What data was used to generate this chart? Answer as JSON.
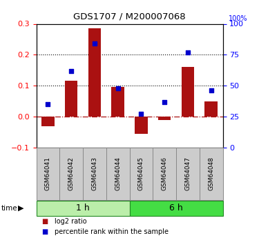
{
  "title": "GDS1707 / M200007068",
  "samples": [
    "GSM64041",
    "GSM64042",
    "GSM64043",
    "GSM64044",
    "GSM64045",
    "GSM64046",
    "GSM64047",
    "GSM64048"
  ],
  "log2_ratio": [
    -0.03,
    0.115,
    0.285,
    0.095,
    -0.055,
    -0.01,
    0.16,
    0.05
  ],
  "percentile_rank": [
    35,
    62,
    84,
    48,
    27,
    37,
    77,
    46
  ],
  "groups": [
    {
      "label": "1 h",
      "indices": [
        0,
        1,
        2,
        3
      ],
      "color": "#bbeeaa"
    },
    {
      "label": "6 h",
      "indices": [
        4,
        5,
        6,
        7
      ],
      "color": "#44dd44"
    }
  ],
  "bar_color": "#aa1111",
  "dot_color": "#0000cc",
  "ylim_left": [
    -0.1,
    0.3
  ],
  "ylim_right": [
    0,
    100
  ],
  "yticks_left": [
    -0.1,
    0.0,
    0.1,
    0.2,
    0.3
  ],
  "yticks_right": [
    0,
    25,
    50,
    75,
    100
  ],
  "dotted_lines": [
    0.1,
    0.2
  ],
  "zero_line": 0.0,
  "legend_log2": "log2 ratio",
  "legend_pct": "percentile rank within the sample",
  "bg_color": "#ffffff",
  "box_face": "#cccccc",
  "box_edge": "#888888"
}
